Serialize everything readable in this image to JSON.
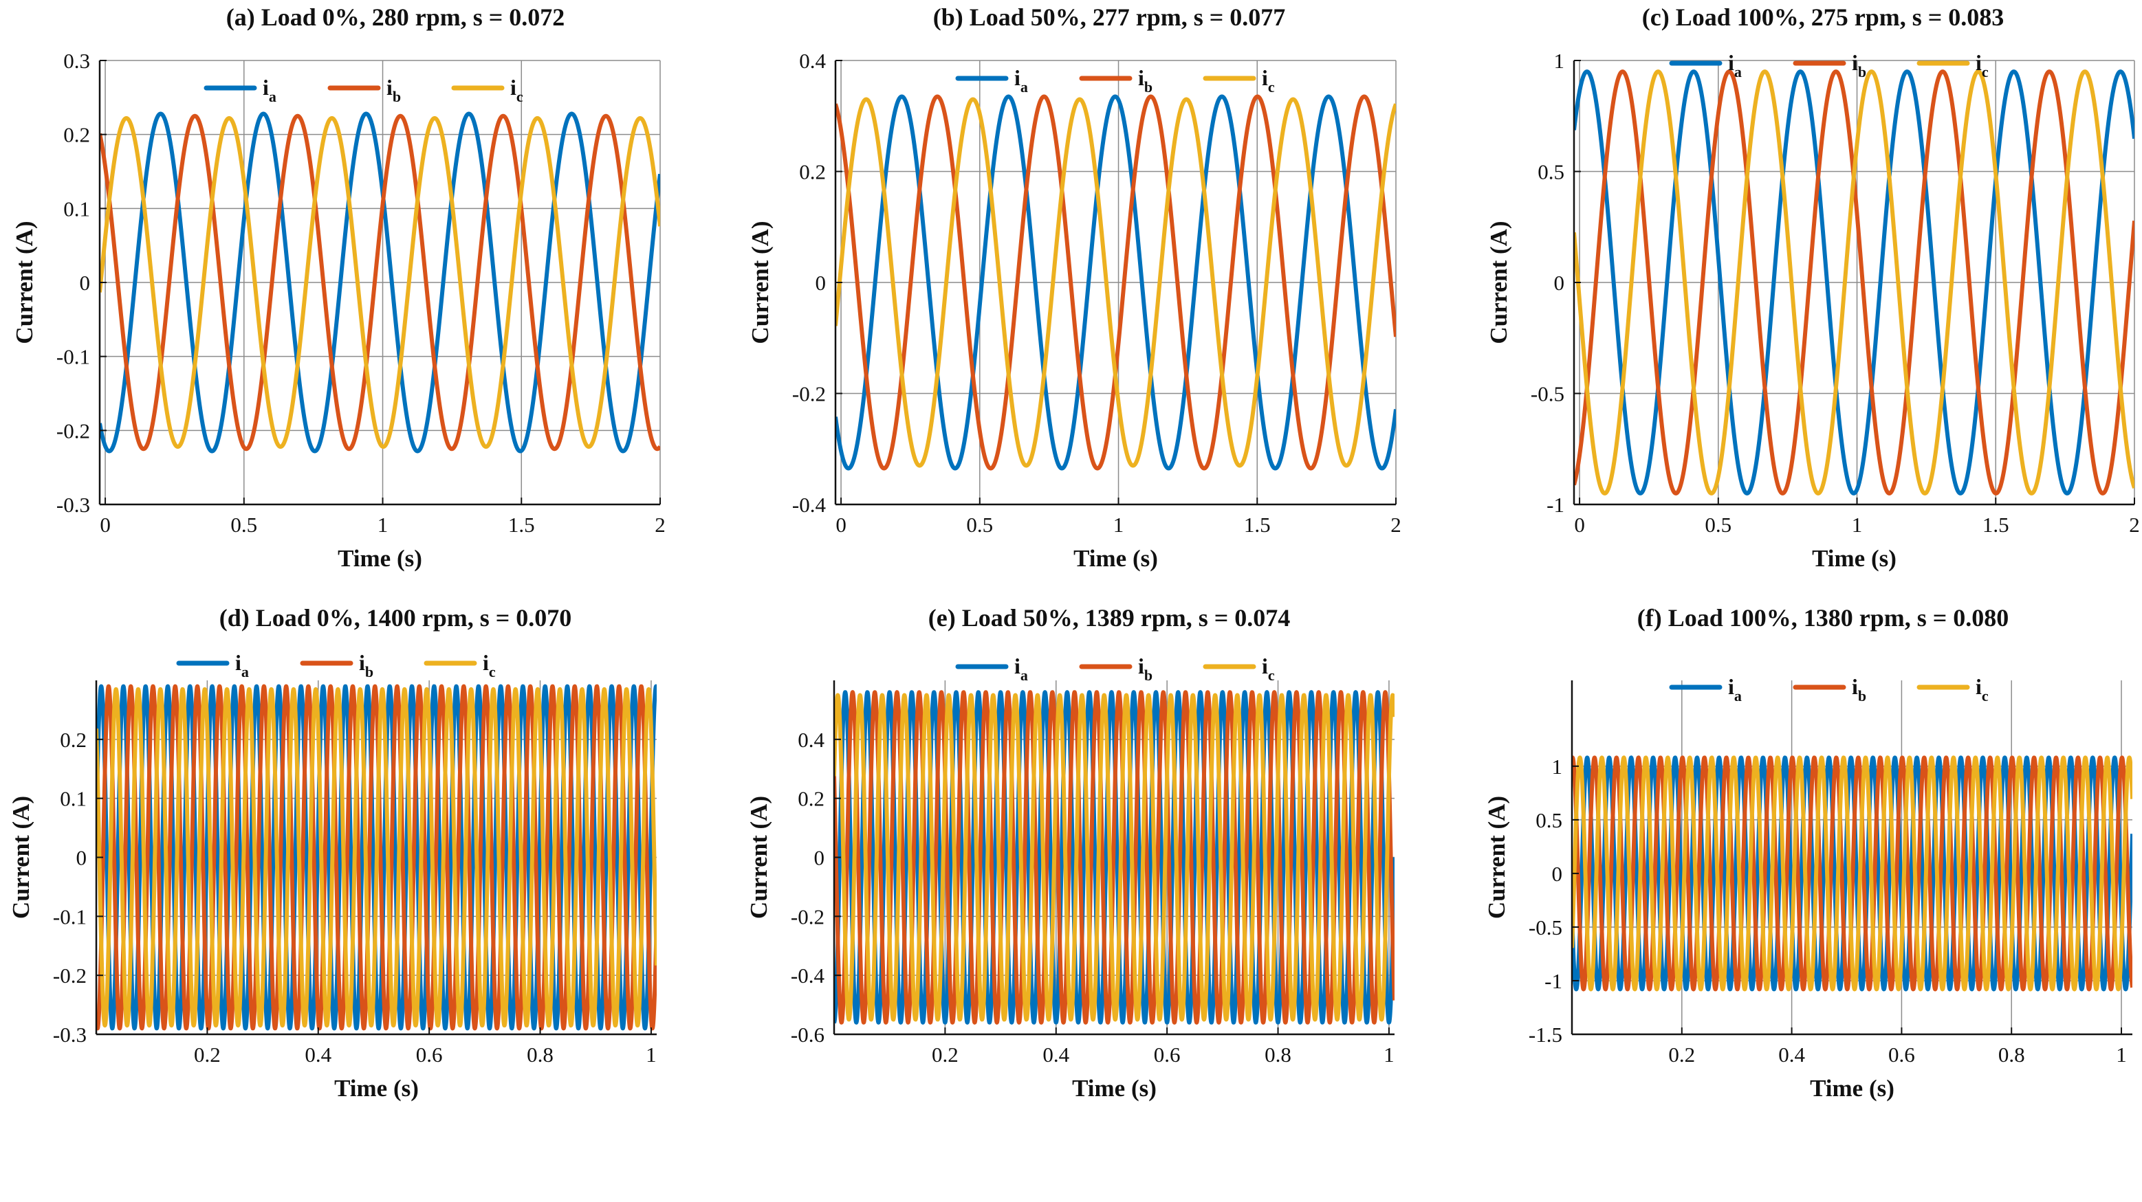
{
  "colors": {
    "ia": "#0072BD",
    "ib": "#D95319",
    "ic": "#EDB120",
    "grid": "#8c8c8c",
    "axis": "#111111"
  },
  "chart_data": [
    {
      "id": "a",
      "type": "line",
      "title": "(a) Load 0%, 280 rpm, s = 0.072",
      "xlabel": "Time (s)",
      "ylabel": "Current (A)",
      "xlim": [
        -0.02,
        2.0
      ],
      "ylim": [
        -0.3,
        0.3
      ],
      "xticks": [
        0,
        0.5,
        1,
        1.5,
        2
      ],
      "xtick_labels": [
        "0",
        "0.5",
        "1",
        "1.5",
        "2"
      ],
      "yticks": [
        -0.3,
        -0.2,
        -0.1,
        0,
        0.1,
        0.2,
        0.3
      ],
      "ytick_labels": [
        "-0.3",
        "-0.2",
        "-0.1",
        "0",
        "0.1",
        "0.2",
        "0.3"
      ],
      "grid": true,
      "legend_position": "top",
      "frequency_hz": 2.7,
      "series": [
        {
          "name": "ia",
          "symbol": "i",
          "sub": "a",
          "amplitude": 0.228,
          "phase_deg": 256
        },
        {
          "name": "ib",
          "symbol": "i",
          "sub": "b",
          "amplitude": 0.225,
          "phase_deg": 136
        },
        {
          "name": "ic",
          "symbol": "i",
          "sub": "c",
          "amplitude": 0.222,
          "phase_deg": 16
        }
      ]
    },
    {
      "id": "b",
      "type": "line",
      "title": "(b) Load 50%, 277 rpm, s = 0.077",
      "xlabel": "Time (s)",
      "ylabel": "Current (A)",
      "xlim": [
        -0.02,
        2.0
      ],
      "ylim": [
        -0.4,
        0.4
      ],
      "xticks": [
        0,
        0.5,
        1,
        1.5,
        2
      ],
      "xtick_labels": [
        "0",
        "0.5",
        "1",
        "1.5",
        "2"
      ],
      "yticks": [
        -0.4,
        -0.2,
        0,
        0.2,
        0.4
      ],
      "ytick_labels": [
        "-0.4",
        "-0.2",
        "0",
        "0.2",
        "0.4"
      ],
      "grid": true,
      "legend_position": "top",
      "frequency_hz": 2.6,
      "series": [
        {
          "name": "ia",
          "symbol": "i",
          "sub": "a",
          "amplitude": 0.335,
          "phase_deg": 245
        },
        {
          "name": "ib",
          "symbol": "i",
          "sub": "b",
          "amplitude": 0.335,
          "phase_deg": 125
        },
        {
          "name": "ic",
          "symbol": "i",
          "sub": "c",
          "amplitude": 0.33,
          "phase_deg": 5
        }
      ]
    },
    {
      "id": "c",
      "type": "line",
      "title": "(c) Load 100%, 275 rpm, s = 0.083",
      "xlabel": "Time (s)",
      "ylabel": "Current (A)",
      "xlim": [
        -0.02,
        2.0
      ],
      "ylim": [
        -1,
        1
      ],
      "xticks": [
        0,
        0.5,
        1,
        1.5,
        2
      ],
      "xtick_labels": [
        "0",
        "0.5",
        "1",
        "1.5",
        "2"
      ],
      "yticks": [
        -1,
        -0.5,
        0,
        0.5,
        1
      ],
      "ytick_labels": [
        "-1",
        "-0.5",
        "0",
        "0.5",
        "1"
      ],
      "grid": true,
      "legend_position": "top",
      "frequency_hz": 2.6,
      "series": [
        {
          "name": "ia",
          "symbol": "i",
          "sub": "a",
          "amplitude": 0.95,
          "phase_deg": 65
        },
        {
          "name": "ib",
          "symbol": "i",
          "sub": "b",
          "amplitude": 0.95,
          "phase_deg": 305
        },
        {
          "name": "ic",
          "symbol": "i",
          "sub": "c",
          "amplitude": 0.95,
          "phase_deg": 185
        }
      ]
    },
    {
      "id": "d",
      "type": "line",
      "title": "(d) Load 0%, 1400 rpm, s = 0.070",
      "xlabel": "Time (s)",
      "ylabel": "Current (A)",
      "xlim": [
        0,
        1.01
      ],
      "ylim": [
        -0.3,
        0.3
      ],
      "xticks": [
        0.2,
        0.4,
        0.6,
        0.8,
        1
      ],
      "xtick_labels": [
        "0.2",
        "0.4",
        "0.6",
        "0.8",
        "1"
      ],
      "yticks": [
        -0.3,
        -0.2,
        -0.1,
        0,
        0.1,
        0.2
      ],
      "ytick_labels": [
        "-0.3",
        "-0.2",
        "-0.1",
        "0",
        "0.1",
        "0.2"
      ],
      "grid": true,
      "legend_position": "top",
      "frequency_hz": 25,
      "series": [
        {
          "name": "ia",
          "symbol": "i",
          "sub": "a",
          "amplitude": 0.29,
          "phase_deg": 10
        },
        {
          "name": "ib",
          "symbol": "i",
          "sub": "b",
          "amplitude": 0.29,
          "phase_deg": 250
        },
        {
          "name": "ic",
          "symbol": "i",
          "sub": "c",
          "amplitude": 0.285,
          "phase_deg": 130
        }
      ]
    },
    {
      "id": "e",
      "type": "line",
      "title": "(e) Load 50%, 1389 rpm, s = 0.074",
      "xlabel": "Time (s)",
      "ylabel": "Current (A)",
      "xlim": [
        0,
        1.01
      ],
      "ylim": [
        -0.6,
        0.6
      ],
      "xticks": [
        0.2,
        0.4,
        0.6,
        0.8,
        1
      ],
      "xtick_labels": [
        "0.2",
        "0.4",
        "0.6",
        "0.8",
        "1"
      ],
      "yticks": [
        -0.6,
        -0.4,
        -0.2,
        0,
        0.2,
        0.4
      ],
      "ytick_labels": [
        "-0.6",
        "-0.4",
        "-0.2",
        "0",
        "0.2",
        "0.4"
      ],
      "grid": true,
      "legend_position": "top",
      "frequency_hz": 25,
      "series": [
        {
          "name": "ia",
          "symbol": "i",
          "sub": "a",
          "amplitude": 0.56,
          "phase_deg": 270
        },
        {
          "name": "ib",
          "symbol": "i",
          "sub": "b",
          "amplitude": 0.56,
          "phase_deg": 150
        },
        {
          "name": "ic",
          "symbol": "i",
          "sub": "c",
          "amplitude": 0.55,
          "phase_deg": 30
        }
      ]
    },
    {
      "id": "f",
      "type": "line",
      "title": "(f) Load 100%, 1380 rpm, s = 0.080",
      "xlabel": "Time (s)",
      "ylabel": "Current (A)",
      "xlim": [
        0,
        1.02
      ],
      "ylim": [
        -1.5,
        1.8
      ],
      "xticks": [
        0.2,
        0.4,
        0.6,
        0.8,
        1
      ],
      "xtick_labels": [
        "0.2",
        "0.4",
        "0.6",
        "0.8",
        "1"
      ],
      "yticks": [
        -1.5,
        -1,
        -0.5,
        0,
        0.5,
        1
      ],
      "ytick_labels": [
        "-1.5",
        "-1",
        "-0.5",
        "0",
        "0.5",
        "1"
      ],
      "grid": true,
      "legend_position": "top",
      "frequency_hz": 25,
      "series": [
        {
          "name": "ia",
          "symbol": "i",
          "sub": "a",
          "amplitude": 1.08,
          "phase_deg": 200
        },
        {
          "name": "ib",
          "symbol": "i",
          "sub": "b",
          "amplitude": 1.08,
          "phase_deg": 80
        },
        {
          "name": "ic",
          "symbol": "i",
          "sub": "c",
          "amplitude": 1.08,
          "phase_deg": 320
        }
      ]
    }
  ]
}
